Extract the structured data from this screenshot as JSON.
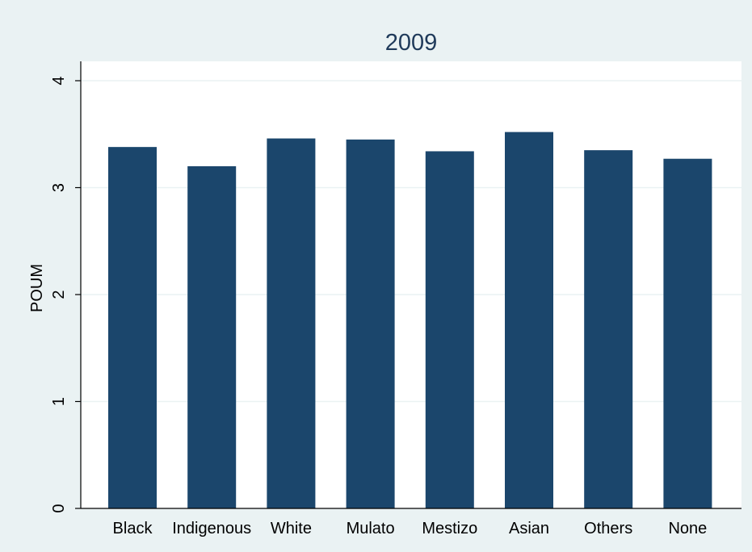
{
  "chart_data": {
    "type": "bar",
    "title": "2009",
    "xlabel": "",
    "ylabel": "POUM",
    "categories": [
      "Black",
      "Indigenous",
      "White",
      "Mulato",
      "Mestizo",
      "Asian",
      "Others",
      "None"
    ],
    "values": [
      3.38,
      3.2,
      3.46,
      3.45,
      3.34,
      3.52,
      3.35,
      3.27
    ],
    "ylim": [
      0,
      4
    ],
    "yticks": [
      "0",
      "1",
      "2",
      "3",
      "4"
    ],
    "grid": true,
    "colors": {
      "background": "#eaf2f3",
      "plot_background": "#ffffff",
      "bar": "#1b466c",
      "grid": "#eaf2f3",
      "title": "#1f3a5a"
    }
  }
}
